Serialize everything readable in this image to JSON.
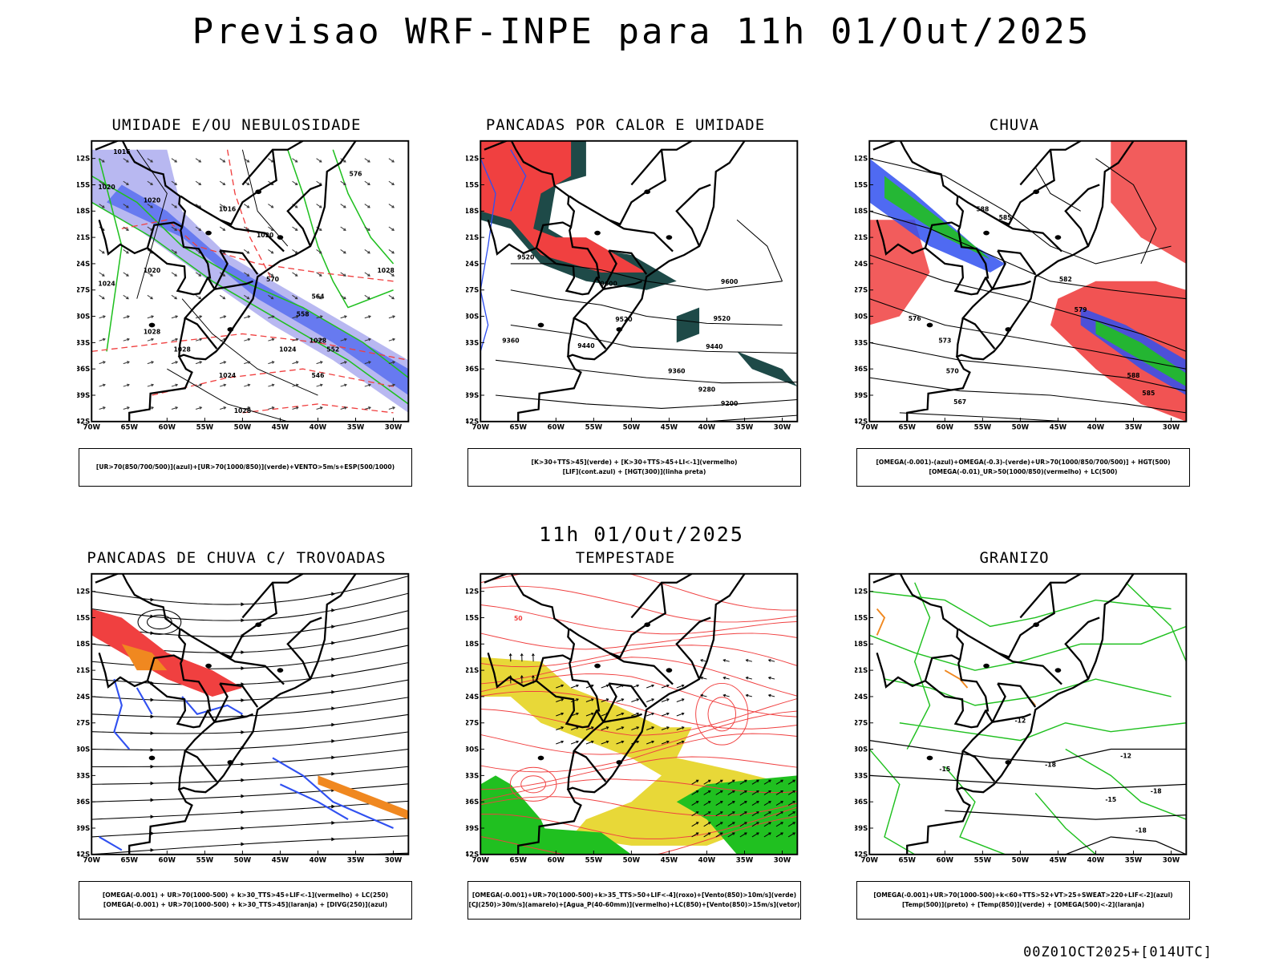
{
  "title": "Previsao WRF-INPE  para 11h 01/Out/2025",
  "mid_title": "11h 01/Out/2025",
  "footer_stamp": "00Z01OCT2025+[014UTC]",
  "colors": {
    "red": "#f04040",
    "green": "#20c020",
    "blue": "#3050f0",
    "lavender": "#b0b0f0",
    "darkteal": "#1e4a48",
    "yellow": "#e8d838",
    "orange": "#f08820"
  },
  "chart_data": [
    {
      "type": "map",
      "title": "UMIDADE E/OU NEBULOSIDADE",
      "legend": [
        "[UR>70(850/700/500)](azul)+[UR>70(1000/850)](verde)+VENTO>5m/s+ESP(500/1000)"
      ],
      "xlabels": [
        "70W",
        "65W",
        "60W",
        "55W",
        "50W",
        "45W",
        "40W",
        "35W",
        "30W"
      ],
      "ylabels": [
        "12S",
        "15S",
        "18S",
        "21S",
        "24S",
        "27S",
        "30S",
        "33S",
        "36S",
        "39S",
        "42S"
      ],
      "contour_labels": [
        "1016",
        "1020",
        "1020",
        "1016",
        "1020",
        "1024",
        "1028",
        "1028",
        "1024",
        "1024",
        "1020",
        "1028",
        "1028",
        "1028",
        "576",
        "570",
        "564",
        "558",
        "552",
        "546"
      ],
      "xlim": [
        -70,
        -28
      ],
      "ylim": [
        -42,
        -10
      ]
    },
    {
      "type": "map",
      "title": "PANCADAS POR CALOR E UMIDADE",
      "legend": [
        "[K>30+TTS>45](verde) + [K>30+TTS>45+LI<-1](vermelho)",
        "[LIF](cont.azul) + [HGT(300)](linha preta)"
      ],
      "xlabels": [
        "70W",
        "65W",
        "60W",
        "55W",
        "50W",
        "45W",
        "40W",
        "35W",
        "30W"
      ],
      "ylabels": [
        "12S",
        "15S",
        "18S",
        "21S",
        "24S",
        "27S",
        "30S",
        "33S",
        "36S",
        "39S",
        "42S"
      ],
      "contour_labels": [
        "9600",
        "9520",
        "9440",
        "9360",
        "9280",
        "9200",
        "9600",
        "9520",
        "9440",
        "9360",
        "9520"
      ],
      "xlim": [
        -70,
        -28
      ],
      "ylim": [
        -42,
        -10
      ]
    },
    {
      "type": "map",
      "title": "CHUVA",
      "legend": [
        "[OMEGA(-0.001)-(azul)+OMEGA(-0.3)-(verde)+UR>70(1000/850/700/500)] + HGT(500)",
        "[OMEGA(-0.01)_UR>50(1000/850)(vermelho) + LC(500)"
      ],
      "xlabels": [
        "70W",
        "65W",
        "60W",
        "55W",
        "50W",
        "45W",
        "40W",
        "35W",
        "30W"
      ],
      "ylabels": [
        "12S",
        "15S",
        "18S",
        "21S",
        "24S",
        "27S",
        "30S",
        "33S",
        "36S",
        "39S",
        "42S"
      ],
      "contour_labels": [
        "588",
        "585",
        "582",
        "579",
        "576",
        "573",
        "570",
        "567",
        "588",
        "585"
      ],
      "xlim": [
        -70,
        -28
      ],
      "ylim": [
        -42,
        -10
      ]
    },
    {
      "type": "map",
      "title": "PANCADAS DE CHUVA C/ TROVOADAS",
      "legend": [
        "[OMEGA(-0.001) + UR>70(1000-500) + k>30_TTS>45+LIF<-1](vermelho) + LC(250)",
        "[OMEGA(-0.001) + UR>70(1000-500) + k>30_TTS>45](laranja) + [DIVG(250)](azul)"
      ],
      "xlabels": [
        "70W",
        "65W",
        "60W",
        "55W",
        "50W",
        "45W",
        "40W",
        "35W",
        "30W"
      ],
      "ylabels": [
        "12S",
        "15S",
        "18S",
        "21S",
        "24S",
        "27S",
        "30S",
        "33S",
        "36S",
        "39S",
        "42S"
      ],
      "contour_labels": [],
      "xlim": [
        -70,
        -28
      ],
      "ylim": [
        -42,
        -10
      ]
    },
    {
      "type": "map",
      "title": "TEMPESTADE",
      "legend": [
        "[OMEGA(-0.001)+UR>70(1000-500)+k>35_TTS>50+LIF<-4](roxo)+[Vento(850)>10m/s](verde)",
        "[CJ(250)>30m/s](amarelo)+[Agua_P(40-60mm)](vermelho)+LC(850)+[Vento(850)>15m/s](vetor)"
      ],
      "xlabels": [
        "70W",
        "65W",
        "60W",
        "55W",
        "50W",
        "45W",
        "40W",
        "35W",
        "30W"
      ],
      "ylabels": [
        "12S",
        "15S",
        "18S",
        "21S",
        "24S",
        "27S",
        "30S",
        "33S",
        "36S",
        "39S",
        "42S"
      ],
      "contour_labels": [
        "50"
      ],
      "xlim": [
        -70,
        -28
      ],
      "ylim": [
        -42,
        -10
      ]
    },
    {
      "type": "map",
      "title": "GRANIZO",
      "legend": [
        "[OMEGA(-0.001)+UR>70(1000-500)+k<60+TTS>52+VT>25+SWEAT>220+LIF<-2](azul)",
        "[Temp(500)](preto) + [Temp(850)](verde) + [OMEGA(500)<-2](laranja)"
      ],
      "xlabels": [
        "70W",
        "65W",
        "60W",
        "55W",
        "50W",
        "45W",
        "40W",
        "35W",
        "30W"
      ],
      "ylabels": [
        "12S",
        "15S",
        "18S",
        "21S",
        "24S",
        "27S",
        "30S",
        "33S",
        "36S",
        "39S",
        "42S"
      ],
      "contour_labels": [
        "-12",
        "-15",
        "-18",
        "-15",
        "-12",
        "-18",
        "-18"
      ],
      "xlim": [
        -70,
        -28
      ],
      "ylim": [
        -42,
        -10
      ]
    }
  ]
}
